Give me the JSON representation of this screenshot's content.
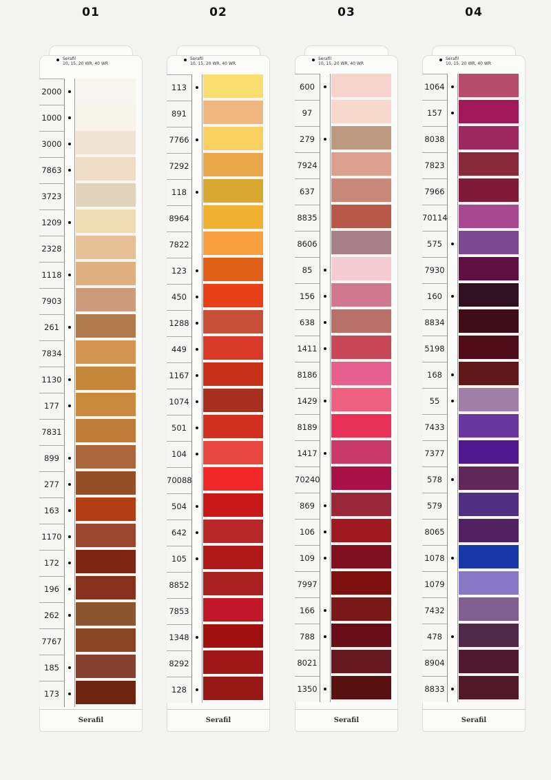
{
  "columns": [
    {
      "title": "01",
      "header_brand": "Serafil",
      "header_sizes": "10, 15, 20 WR, 40 WR",
      "footer": "Serafil",
      "rows": [
        {
          "code": "2000",
          "dot": true,
          "color": "#f8f6f0"
        },
        {
          "code": "1000",
          "dot": true,
          "color": "#f6f3ea"
        },
        {
          "code": "3000",
          "dot": true,
          "color": "#f1e3d3"
        },
        {
          "code": "7863",
          "dot": true,
          "color": "#efdcc4"
        },
        {
          "code": "3723",
          "dot": false,
          "color": "#e0d2bb"
        },
        {
          "code": "1209",
          "dot": true,
          "color": "#efdbb5"
        },
        {
          "code": "2328",
          "dot": false,
          "color": "#e6c196"
        },
        {
          "code": "1118",
          "dot": true,
          "color": "#dfb17e"
        },
        {
          "code": "7903",
          "dot": false,
          "color": "#cd9a7e"
        },
        {
          "code": "261",
          "dot": true,
          "color": "#b07a4d"
        },
        {
          "code": "7834",
          "dot": false,
          "color": "#d49452"
        },
        {
          "code": "1130",
          "dot": true,
          "color": "#c5873a"
        },
        {
          "code": "177",
          "dot": true,
          "color": "#c98a3e"
        },
        {
          "code": "7831",
          "dot": false,
          "color": "#c07d3a"
        },
        {
          "code": "899",
          "dot": true,
          "color": "#a8663a"
        },
        {
          "code": "277",
          "dot": true,
          "color": "#954f26"
        },
        {
          "code": "163",
          "dot": true,
          "color": "#b43e14"
        },
        {
          "code": "1170",
          "dot": true,
          "color": "#9b4730"
        },
        {
          "code": "172",
          "dot": true,
          "color": "#7e2612"
        },
        {
          "code": "196",
          "dot": true,
          "color": "#88301e"
        },
        {
          "code": "262",
          "dot": true,
          "color": "#8a5530"
        },
        {
          "code": "7767",
          "dot": false,
          "color": "#8a4426"
        },
        {
          "code": "185",
          "dot": true,
          "color": "#844030"
        },
        {
          "code": "173",
          "dot": true,
          "color": "#6e2412"
        }
      ]
    },
    {
      "title": "02",
      "header_brand": "Serafil",
      "header_sizes": "10, 15, 20 WR, 40 WR",
      "footer": "Serafil",
      "rows": [
        {
          "code": "113",
          "dot": true,
          "color": "#f9df70"
        },
        {
          "code": "891",
          "dot": false,
          "color": "#f0b880"
        },
        {
          "code": "7766",
          "dot": true,
          "color": "#f8d060"
        },
        {
          "code": "7292",
          "dot": false,
          "color": "#e8a84a"
        },
        {
          "code": "118",
          "dot": true,
          "color": "#d8a830"
        },
        {
          "code": "8964",
          "dot": false,
          "color": "#f0b030"
        },
        {
          "code": "7822",
          "dot": false,
          "color": "#f8a040"
        },
        {
          "code": "123",
          "dot": true,
          "color": "#e06018"
        },
        {
          "code": "450",
          "dot": true,
          "color": "#e84018"
        },
        {
          "code": "1288",
          "dot": true,
          "color": "#c85038"
        },
        {
          "code": "449",
          "dot": true,
          "color": "#d83828"
        },
        {
          "code": "1167",
          "dot": true,
          "color": "#c83018"
        },
        {
          "code": "1074",
          "dot": true,
          "color": "#a83020"
        },
        {
          "code": "501",
          "dot": true,
          "color": "#d03020"
        },
        {
          "code": "104",
          "dot": true,
          "color": "#e84840"
        },
        {
          "code": "70088",
          "dot": false,
          "color": "#f02828"
        },
        {
          "code": "504",
          "dot": true,
          "color": "#c81818"
        },
        {
          "code": "642",
          "dot": true,
          "color": "#b82828"
        },
        {
          "code": "105",
          "dot": true,
          "color": "#b01818"
        },
        {
          "code": "8852",
          "dot": false,
          "color": "#a82020"
        },
        {
          "code": "7853",
          "dot": false,
          "color": "#c01828"
        },
        {
          "code": "1348",
          "dot": true,
          "color": "#a01010"
        },
        {
          "code": "8292",
          "dot": false,
          "color": "#a01818"
        },
        {
          "code": "128",
          "dot": true,
          "color": "#981818"
        }
      ]
    },
    {
      "title": "03",
      "header_brand": "Serafil",
      "header_sizes": "10, 15, 20 WR, 40 WR",
      "footer": "Serafil",
      "rows": [
        {
          "code": "600",
          "dot": true,
          "color": "#f6d3cc"
        },
        {
          "code": "97",
          "dot": false,
          "color": "#f8d8cc"
        },
        {
          "code": "279",
          "dot": true,
          "color": "#bc9a80"
        },
        {
          "code": "7924",
          "dot": false,
          "color": "#dca090"
        },
        {
          "code": "637",
          "dot": false,
          "color": "#c88878"
        },
        {
          "code": "8835",
          "dot": false,
          "color": "#b85848"
        },
        {
          "code": "8606",
          "dot": false,
          "color": "#a8808a"
        },
        {
          "code": "85",
          "dot": true,
          "color": "#f5ccd4"
        },
        {
          "code": "156",
          "dot": true,
          "color": "#d07890"
        },
        {
          "code": "638",
          "dot": true,
          "color": "#b87068"
        },
        {
          "code": "1411",
          "dot": true,
          "color": "#c84858"
        },
        {
          "code": "8186",
          "dot": false,
          "color": "#e86090"
        },
        {
          "code": "1429",
          "dot": true,
          "color": "#f06080"
        },
        {
          "code": "8189",
          "dot": false,
          "color": "#e83058"
        },
        {
          "code": "1417",
          "dot": true,
          "color": "#c83868"
        },
        {
          "code": "70240",
          "dot": false,
          "color": "#a81048"
        },
        {
          "code": "869",
          "dot": true,
          "color": "#982838"
        },
        {
          "code": "106",
          "dot": true,
          "color": "#a01820"
        },
        {
          "code": "109",
          "dot": true,
          "color": "#801020"
        },
        {
          "code": "7997",
          "dot": false,
          "color": "#801010"
        },
        {
          "code": "166",
          "dot": true,
          "color": "#7a1818"
        },
        {
          "code": "788",
          "dot": true,
          "color": "#680c18"
        },
        {
          "code": "8021",
          "dot": false,
          "color": "#681820"
        },
        {
          "code": "1350",
          "dot": true,
          "color": "#581010"
        }
      ]
    },
    {
      "title": "04",
      "header_brand": "Serafil",
      "header_sizes": "10, 15, 20 WR, 40 WR",
      "footer": "Serafil",
      "rows": [
        {
          "code": "1064",
          "dot": true,
          "color": "#b84c6c"
        },
        {
          "code": "157",
          "dot": true,
          "color": "#a01858"
        },
        {
          "code": "8038",
          "dot": false,
          "color": "#a02860"
        },
        {
          "code": "7823",
          "dot": false,
          "color": "#882838"
        },
        {
          "code": "7966",
          "dot": false,
          "color": "#801838"
        },
        {
          "code": "70114",
          "dot": false,
          "color": "#a84890"
        },
        {
          "code": "575",
          "dot": true,
          "color": "#7c4a90"
        },
        {
          "code": "7930",
          "dot": false,
          "color": "#601040"
        },
        {
          "code": "160",
          "dot": true,
          "color": "#301020"
        },
        {
          "code": "8834",
          "dot": false,
          "color": "#400c18"
        },
        {
          "code": "5198",
          "dot": false,
          "color": "#500c18"
        },
        {
          "code": "168",
          "dot": true,
          "color": "#601818"
        },
        {
          "code": "55",
          "dot": true,
          "color": "#a080a8"
        },
        {
          "code": "7433",
          "dot": false,
          "color": "#6838a0"
        },
        {
          "code": "7377",
          "dot": false,
          "color": "#501890"
        },
        {
          "code": "578",
          "dot": true,
          "color": "#602858"
        },
        {
          "code": "579",
          "dot": false,
          "color": "#503080"
        },
        {
          "code": "8065",
          "dot": false,
          "color": "#502060"
        },
        {
          "code": "1078",
          "dot": true,
          "color": "#1838a8"
        },
        {
          "code": "1079",
          "dot": false,
          "color": "#8878c8"
        },
        {
          "code": "7432",
          "dot": false,
          "color": "#806090"
        },
        {
          "code": "478",
          "dot": true,
          "color": "#502848"
        },
        {
          "code": "8904",
          "dot": false,
          "color": "#501830"
        },
        {
          "code": "8833",
          "dot": true,
          "color": "#501828"
        }
      ]
    }
  ]
}
